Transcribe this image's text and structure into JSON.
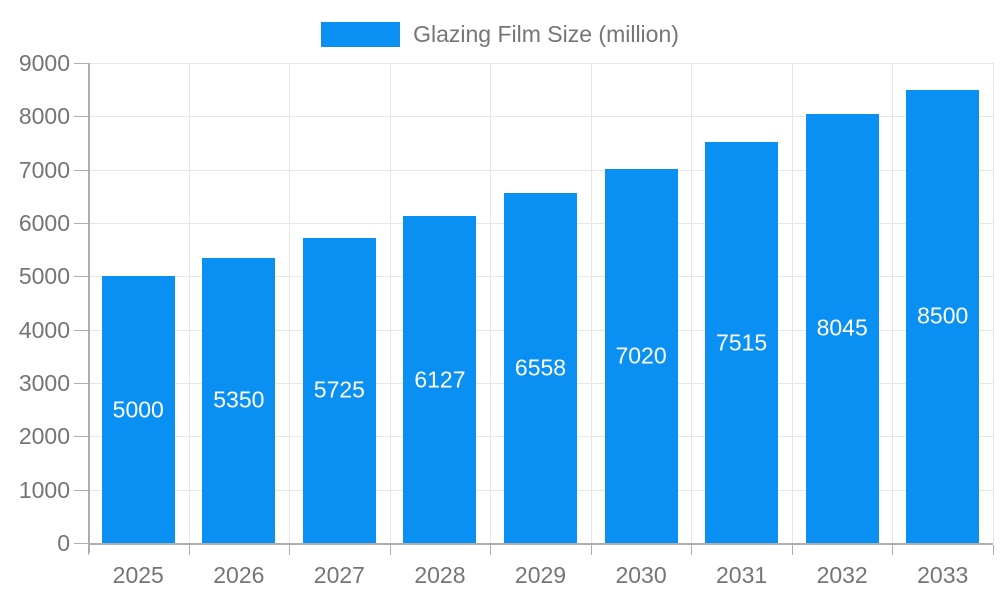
{
  "chart_data": {
    "type": "bar",
    "title": "",
    "legend": "Glazing Film Size (million)",
    "legend_position": "top-center",
    "categories": [
      "2025",
      "2026",
      "2027",
      "2028",
      "2029",
      "2030",
      "2031",
      "2032",
      "2033"
    ],
    "values": [
      5000,
      5350,
      5725,
      6127,
      6558,
      7020,
      7515,
      8045,
      8500
    ],
    "xlabel": "",
    "ylabel": "",
    "ylim": [
      0,
      9000
    ],
    "yticks": [
      0,
      1000,
      2000,
      3000,
      4000,
      5000,
      6000,
      7000,
      8000,
      9000
    ],
    "grid": "both",
    "value_labels": "inside-center",
    "colors": {
      "bar": "#0a8ff2",
      "bar_value_text": "#ffffff",
      "axis_text": "#757575",
      "legend_text": "#757575",
      "grid_line": "#e6e6e6",
      "axis_line": "#adadad",
      "background": "#ffffff"
    }
  }
}
